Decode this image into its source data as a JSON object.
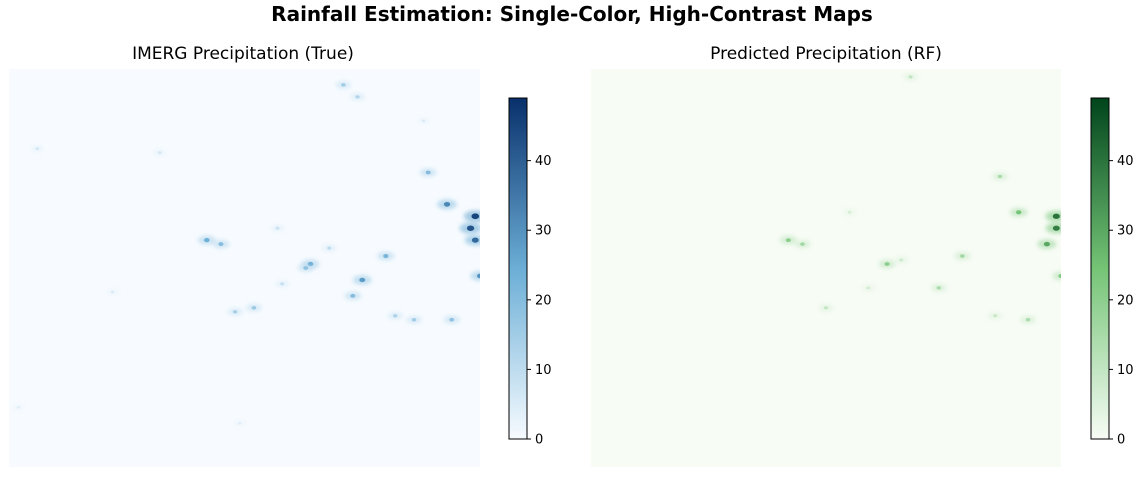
{
  "figure": {
    "suptitle": "Rainfall Estimation: Single-Color, High-Contrast Maps"
  },
  "chart_data": [
    {
      "type": "heatmap",
      "title": "IMERG Precipitation (True)",
      "colormap": "Blues",
      "colors": {
        "low": "#f7fbff",
        "mid": "#6baed6",
        "high": "#08306b"
      },
      "colorbar": {
        "min": 0,
        "max": 49,
        "ticks": [
          0,
          10,
          20,
          30,
          40
        ],
        "tick_labels": [
          "0",
          "10",
          "20",
          "30",
          "40"
        ]
      },
      "axes_visible": false,
      "grid": false,
      "features": [
        {
          "x": 0.71,
          "y": 0.04,
          "value": 15
        },
        {
          "x": 0.74,
          "y": 0.07,
          "value": 12
        },
        {
          "x": 0.89,
          "y": 0.26,
          "value": 20
        },
        {
          "x": 0.93,
          "y": 0.34,
          "value": 32
        },
        {
          "x": 0.99,
          "y": 0.37,
          "value": 45
        },
        {
          "x": 0.98,
          "y": 0.4,
          "value": 42
        },
        {
          "x": 0.99,
          "y": 0.43,
          "value": 38
        },
        {
          "x": 0.42,
          "y": 0.43,
          "value": 24
        },
        {
          "x": 0.45,
          "y": 0.44,
          "value": 20
        },
        {
          "x": 0.64,
          "y": 0.49,
          "value": 25
        },
        {
          "x": 0.63,
          "y": 0.5,
          "value": 18
        },
        {
          "x": 0.75,
          "y": 0.53,
          "value": 28
        },
        {
          "x": 0.8,
          "y": 0.47,
          "value": 22
        },
        {
          "x": 0.52,
          "y": 0.6,
          "value": 16
        },
        {
          "x": 0.48,
          "y": 0.61,
          "value": 14
        },
        {
          "x": 0.73,
          "y": 0.57,
          "value": 20
        },
        {
          "x": 0.94,
          "y": 0.63,
          "value": 18
        },
        {
          "x": 0.86,
          "y": 0.63,
          "value": 15
        },
        {
          "x": 0.82,
          "y": 0.62,
          "value": 13
        },
        {
          "x": 1.0,
          "y": 0.52,
          "value": 30
        },
        {
          "x": 0.06,
          "y": 0.2,
          "value": 6
        },
        {
          "x": 0.32,
          "y": 0.21,
          "value": 6
        },
        {
          "x": 0.22,
          "y": 0.56,
          "value": 5
        },
        {
          "x": 0.49,
          "y": 0.89,
          "value": 4
        },
        {
          "x": 0.02,
          "y": 0.85,
          "value": 4
        },
        {
          "x": 0.88,
          "y": 0.13,
          "value": 5
        },
        {
          "x": 0.57,
          "y": 0.4,
          "value": 8
        },
        {
          "x": 0.68,
          "y": 0.45,
          "value": 10
        },
        {
          "x": 0.58,
          "y": 0.54,
          "value": 9
        }
      ]
    },
    {
      "type": "heatmap",
      "title": "Predicted Precipitation (RF)",
      "colormap": "Greens",
      "colors": {
        "low": "#f7fcf5",
        "mid": "#74c476",
        "high": "#00441b"
      },
      "colorbar": {
        "min": 0,
        "max": 49,
        "ticks": [
          0,
          10,
          20,
          30,
          40
        ],
        "tick_labels": [
          "0",
          "10",
          "20",
          "30",
          "40"
        ]
      },
      "axes_visible": false,
      "grid": false,
      "features": [
        {
          "x": 0.68,
          "y": 0.02,
          "value": 10
        },
        {
          "x": 0.87,
          "y": 0.27,
          "value": 14
        },
        {
          "x": 0.91,
          "y": 0.36,
          "value": 24
        },
        {
          "x": 0.99,
          "y": 0.37,
          "value": 40
        },
        {
          "x": 0.99,
          "y": 0.4,
          "value": 38
        },
        {
          "x": 0.97,
          "y": 0.44,
          "value": 30
        },
        {
          "x": 0.42,
          "y": 0.43,
          "value": 20
        },
        {
          "x": 0.45,
          "y": 0.44,
          "value": 16
        },
        {
          "x": 0.63,
          "y": 0.49,
          "value": 20
        },
        {
          "x": 0.79,
          "y": 0.47,
          "value": 16
        },
        {
          "x": 0.74,
          "y": 0.55,
          "value": 14
        },
        {
          "x": 0.5,
          "y": 0.6,
          "value": 10
        },
        {
          "x": 0.93,
          "y": 0.63,
          "value": 14
        },
        {
          "x": 1.0,
          "y": 0.52,
          "value": 22
        },
        {
          "x": 0.55,
          "y": 0.36,
          "value": 6
        },
        {
          "x": 0.66,
          "y": 0.48,
          "value": 8
        },
        {
          "x": 0.86,
          "y": 0.62,
          "value": 9
        },
        {
          "x": 0.59,
          "y": 0.55,
          "value": 7
        }
      ]
    }
  ]
}
